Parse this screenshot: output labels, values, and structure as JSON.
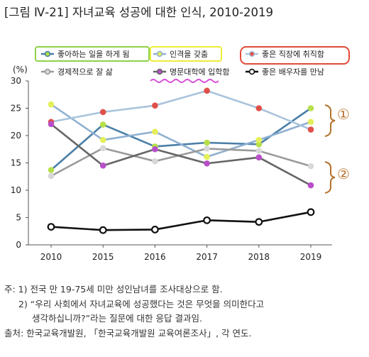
{
  "title": "[그림 Ⅳ-21]  자녀교육 성공에 대한 인식, 2010-2019",
  "chart_data": {
    "type": "line",
    "x": [
      "2010",
      "2015",
      "2016",
      "2017",
      "2018",
      "2019"
    ],
    "ylabel": "(%)",
    "ylim": [
      0,
      30
    ],
    "yticks": [
      0,
      5,
      10,
      15,
      20,
      25,
      30
    ],
    "grid": false,
    "legend_placement": "top",
    "series": [
      {
        "name": "좋아하는 일을 하게 됨",
        "color": "#4a7fa8",
        "marker": "#b6e04a",
        "values": [
          13.7,
          22.0,
          18.0,
          18.7,
          18.4,
          25.0
        ]
      },
      {
        "name": "인격을 갖춤",
        "color": "#8fb0d0",
        "marker": "#e4ef5a",
        "values": [
          25.7,
          19.2,
          20.7,
          16.1,
          19.2,
          22.5
        ]
      },
      {
        "name": "좋은 직장에 취직함",
        "color": "#a9c4dc",
        "marker": "#e0504a",
        "values": [
          22.5,
          24.3,
          25.5,
          28.2,
          25.0,
          21.1
        ]
      },
      {
        "name": "경제적으로 잘 삶",
        "color": "#9a9a9a",
        "marker": "#d8d8d8",
        "values": [
          12.6,
          17.7,
          15.3,
          17.6,
          17.2,
          14.4
        ]
      },
      {
        "name": "명문대학에 입학함",
        "color": "#666666",
        "marker": "#b84fc8",
        "values": [
          22.1,
          14.5,
          17.5,
          14.9,
          16.0,
          10.9
        ]
      },
      {
        "name": "좋은 배우자를 만남",
        "color": "#111111",
        "marker": "#ffffff",
        "values": [
          3.3,
          2.7,
          2.8,
          4.5,
          4.2,
          6.0
        ]
      }
    ],
    "annotations": [
      "①",
      "②"
    ]
  },
  "notes": [
    "주: 1) 전국 만 19-75세 미만 성인남녀를 조사대상으로 함.",
    "2) “우리 사회에서 자녀교육에 성공했다는 것은 무엇을 의미한다고",
    "생각하십니까?”라는 질문에 대한 응답 결과임.",
    "출처: 한국교육개발원, 「한국교육개발원 교육여론조사」, 각 연도."
  ]
}
